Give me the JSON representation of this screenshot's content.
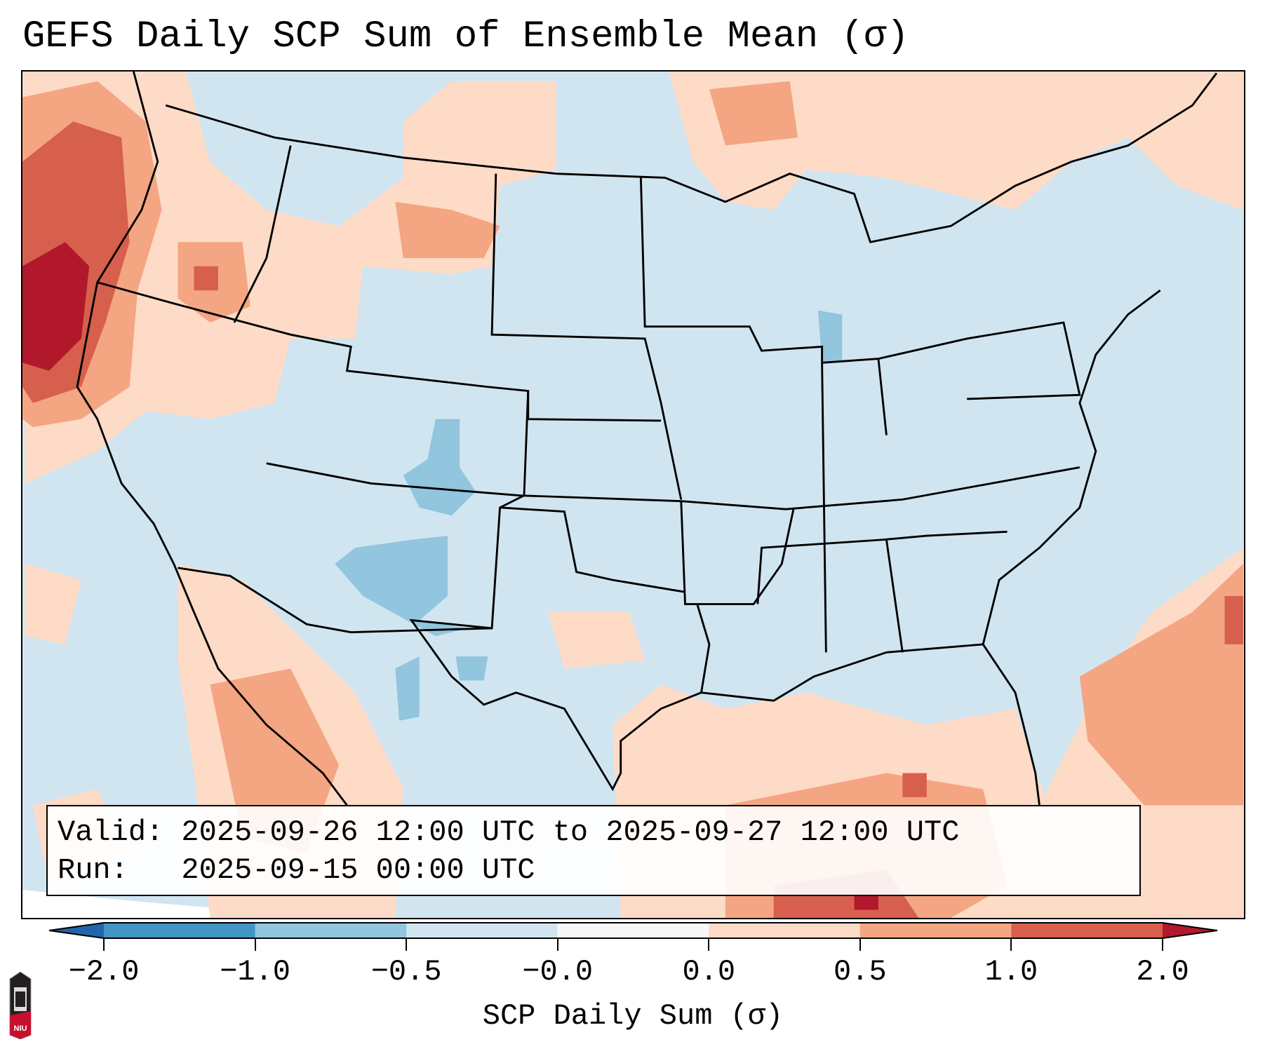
{
  "title": "GEFS Daily SCP Sum of Ensemble Mean (σ)",
  "info": {
    "valid": "Valid: 2025-09-26 12:00 UTC to 2025-09-27 12:00 UTC",
    "run": "Run:   2025-09-15 00:00 UTC"
  },
  "colorbar": {
    "label": "SCP Daily Sum (σ)",
    "ticks": [
      "−2.0",
      "−1.0",
      "−0.5",
      "−0.0",
      "0.0",
      "0.5",
      "1.0",
      "2.0"
    ],
    "colors": [
      "#2166ac",
      "#4393c3",
      "#92c5de",
      "#d1e5f0",
      "#f7f7f7",
      "#fddbc7",
      "#f4a582",
      "#d6604d",
      "#b2182b"
    ],
    "extend": "both"
  },
  "logo": {
    "text": "NIU"
  }
}
